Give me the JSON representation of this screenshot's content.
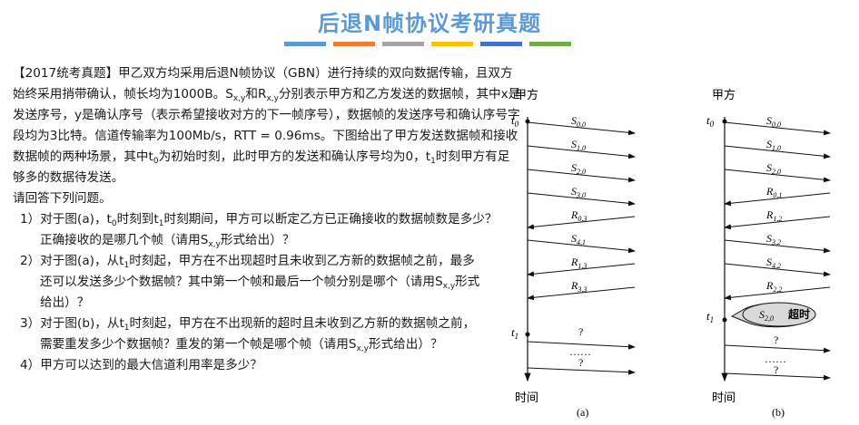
{
  "title": "后退N帧协议考研真题",
  "title_bar_colors": [
    "#5b9bd5",
    "#ed7d31",
    "#a5a5a5",
    "#ffc000",
    "#4472c4",
    "#70ad47"
  ],
  "question": {
    "intro_segments": [
      "【2017统考真题】甲乙双方均采用后退N帧协议（GBN）进行持续的双向数据传输，且双方始终采用捎带确认，帧长均为1000B。S",
      "x,y",
      "和R",
      "x,y",
      "分别表示甲方和乙方发送的数据帧，其中x是发送序号，y是确认序号（表示希望接收对方的下一帧序号），数据帧的发送序号和确认序号字段均为3比特。信道传输率为100Mb/s，RTT = 0.96ms。下图给出了甲方发送数据帧和接收数据帧的两种场景，其中t",
      "0",
      "为初始时刻，此时甲方的发送和确认序号均为0，t",
      "1",
      "时刻甲方有足够多的数据待发送。"
    ],
    "prompt": "请回答下列问题。",
    "q1": [
      "1）对于图(a)，t",
      "0",
      "时刻到t",
      "1",
      "时刻期间，甲方可以断定乙方已正确接收的数据帧数是多少？"
    ],
    "q1b": [
      "正确接收的是哪几个帧（请用S",
      "x,y",
      "形式给出）？"
    ],
    "q2": [
      "2）对于图(a)，从t",
      "1",
      "时刻起，甲方在不出现超时且未收到乙方新的数据帧之前，最多"
    ],
    "q2b": [
      "还可以发送多少个数据帧？其中第一个帧和最后一个帧分别是哪个（请用S",
      "x,y",
      "形式"
    ],
    "q2c": "给出）？",
    "q3": [
      "3）对于图(b)，从t",
      "1",
      "时刻起，甲方在不出现新的超时且未收到乙方新的数据帧之前，"
    ],
    "q3b": [
      "需要重发多少个数据帧？重发的第一个帧是哪个帧（请用S",
      "x,y",
      "形式给出）？"
    ],
    "q4": "4）甲方可以达到的最大信道利用率是多少？"
  },
  "diagrams": {
    "a": {
      "party": "甲方",
      "time_label": "时间",
      "caption": "(a)",
      "t0": [
        "t",
        "0"
      ],
      "t1": [
        "t",
        "1"
      ],
      "frames": [
        {
          "dir": "out",
          "name": "S",
          "sub": "0,0"
        },
        {
          "dir": "out",
          "name": "S",
          "sub": "1,0"
        },
        {
          "dir": "out",
          "name": "S",
          "sub": "2,0"
        },
        {
          "dir": "out",
          "name": "S",
          "sub": "3,0"
        },
        {
          "dir": "in",
          "name": "R",
          "sub": "0,3"
        },
        {
          "dir": "out",
          "name": "S",
          "sub": "4,1"
        },
        {
          "dir": "in",
          "name": "R",
          "sub": "1,3"
        },
        {
          "dir": "in",
          "name": "R",
          "sub": "3,3"
        }
      ],
      "after_t1": [
        "?",
        "……",
        "?"
      ]
    },
    "b": {
      "party": "甲方",
      "time_label": "时间",
      "caption": "(b)",
      "t0": [
        "t",
        "0"
      ],
      "t1": [
        "t",
        "1"
      ],
      "frames": [
        {
          "dir": "out",
          "name": "S",
          "sub": "0,0"
        },
        {
          "dir": "out",
          "name": "S",
          "sub": "1,0"
        },
        {
          "dir": "out",
          "name": "S",
          "sub": "2,0"
        },
        {
          "dir": "in",
          "name": "R",
          "sub": "0,1"
        },
        {
          "dir": "in",
          "name": "R",
          "sub": "1,2"
        },
        {
          "dir": "out",
          "name": "S",
          "sub": "3,2"
        },
        {
          "dir": "out",
          "name": "S",
          "sub": "4,2"
        },
        {
          "dir": "in",
          "name": "R",
          "sub": "2,2"
        }
      ],
      "timeout": {
        "name": "S",
        "sub": "2,0",
        "text": "超时"
      },
      "after_t1": [
        "?",
        "……",
        "?"
      ]
    }
  }
}
